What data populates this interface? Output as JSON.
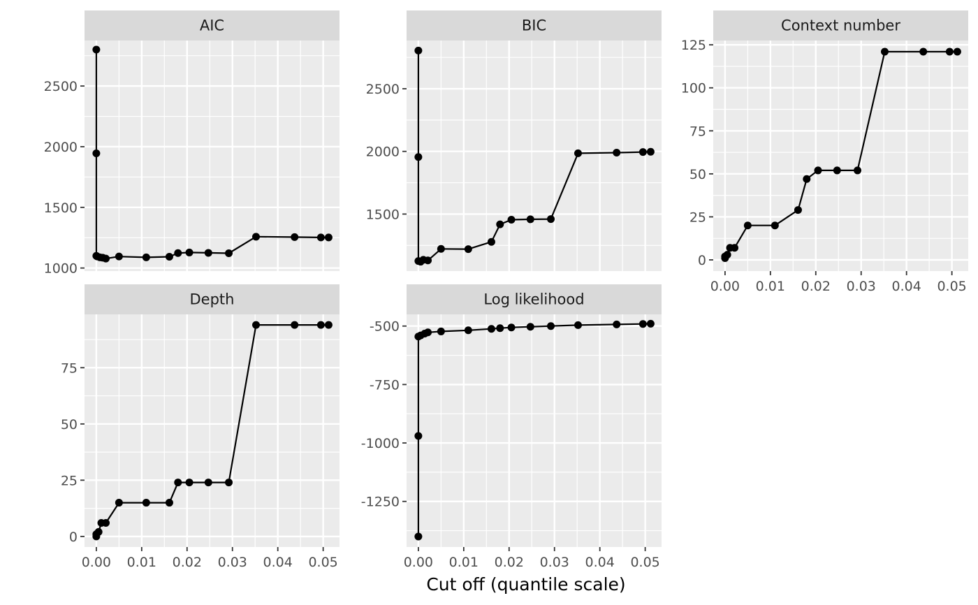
{
  "colors": {
    "panel_bg": "#ebebeb",
    "strip_bg": "#d9d9d9",
    "grid": "#ffffff",
    "line": "#000000",
    "point": "#000000",
    "tick": "#333333"
  },
  "chart_data": {
    "type": "line",
    "xlabel": "Cut off (quantile scale)",
    "ylabel": "",
    "grid": true,
    "x_ticks": [
      "0.00",
      "0.01",
      "0.02",
      "0.03",
      "0.04",
      "0.05"
    ],
    "x_tick_values": [
      0,
      0.01,
      0.02,
      0.03,
      0.04,
      0.05
    ],
    "panels": [
      {
        "key": "aic",
        "title": "AIC",
        "xlim": [
          -0.0026,
          0.0536
        ],
        "ylim": [
          975,
          2875
        ],
        "y_ticks": [
          "1000",
          "1500",
          "2000",
          "2500"
        ],
        "y_tick_values": [
          1000,
          1500,
          2000,
          2500
        ],
        "x": [
          0,
          0,
          0,
          0.0002,
          0.0008,
          0.0014,
          0.0021,
          0.005,
          0.011,
          0.0161,
          0.018,
          0.0205,
          0.0247,
          0.0292,
          0.0352,
          0.0437,
          0.0495,
          0.0512
        ],
        "y": [
          2800,
          1945,
          1100,
          1095,
          1088,
          1085,
          1078,
          1095,
          1088,
          1093,
          1123,
          1128,
          1125,
          1122,
          1258,
          1255,
          1252,
          1252
        ]
      },
      {
        "key": "bic",
        "title": "BIC",
        "xlim": [
          -0.0026,
          0.0536
        ],
        "ylim": [
          1045,
          2885
        ],
        "y_ticks": [
          "1500",
          "2000",
          "2500"
        ],
        "y_tick_values": [
          1500,
          2000,
          2500
        ],
        "x": [
          0,
          0,
          0,
          0.0005,
          0.0011,
          0.0021,
          0.005,
          0.011,
          0.0161,
          0.018,
          0.0205,
          0.0247,
          0.0292,
          0.0352,
          0.0437,
          0.0495,
          0.0512
        ],
        "y": [
          2805,
          1955,
          1125,
          1120,
          1135,
          1130,
          1222,
          1220,
          1278,
          1418,
          1455,
          1458,
          1460,
          1985,
          1990,
          1995,
          1997
        ]
      },
      {
        "key": "context",
        "title": "Context number",
        "xlim": [
          -0.0026,
          0.0536
        ],
        "ylim": [
          -6.5,
          127.5
        ],
        "y_ticks": [
          "0",
          "25",
          "50",
          "75",
          "100",
          "125"
        ],
        "y_tick_values": [
          0,
          25,
          50,
          75,
          100,
          125
        ],
        "x": [
          0,
          0,
          0.0005,
          0.0011,
          0.0021,
          0.005,
          0.011,
          0.0161,
          0.018,
          0.0205,
          0.0247,
          0.0292,
          0.0352,
          0.0437,
          0.0495,
          0.0512
        ],
        "y": [
          1,
          2,
          3,
          7,
          7,
          20,
          20,
          29,
          47,
          52,
          52,
          52,
          121,
          121,
          121,
          121
        ]
      },
      {
        "key": "depth",
        "title": "Depth",
        "xlim": [
          -0.0026,
          0.0536
        ],
        "ylim": [
          -4.7,
          98.7
        ],
        "y_ticks": [
          "0",
          "25",
          "50",
          "75"
        ],
        "y_tick_values": [
          0,
          25,
          50,
          75
        ],
        "x": [
          0,
          0,
          0.0005,
          0.0011,
          0.0021,
          0.005,
          0.011,
          0.0161,
          0.018,
          0.0205,
          0.0247,
          0.0292,
          0.0352,
          0.0437,
          0.0495,
          0.0512
        ],
        "y": [
          0,
          1,
          2,
          6,
          6,
          15,
          15,
          15,
          24,
          24,
          24,
          24,
          94,
          94,
          94,
          94
        ]
      },
      {
        "key": "loglik",
        "title": "Log likelihood",
        "xlim": [
          -0.0026,
          0.0536
        ],
        "ylim": [
          -1445,
          -450
        ],
        "y_ticks": [
          "-1250",
          "-1000",
          "-750",
          "-500"
        ],
        "y_tick_values": [
          -1250,
          -1000,
          -750,
          -500
        ],
        "x": [
          0,
          0,
          0,
          0.0005,
          0.0014,
          0.0021,
          0.005,
          0.011,
          0.0161,
          0.018,
          0.0205,
          0.0247,
          0.0292,
          0.0352,
          0.0437,
          0.0495,
          0.0512
        ],
        "y": [
          -1400,
          -970,
          -545,
          -540,
          -532,
          -527,
          -523,
          -518,
          -512,
          -509,
          -506,
          -503,
          -500,
          -496,
          -493,
          -491,
          -490
        ]
      }
    ]
  }
}
